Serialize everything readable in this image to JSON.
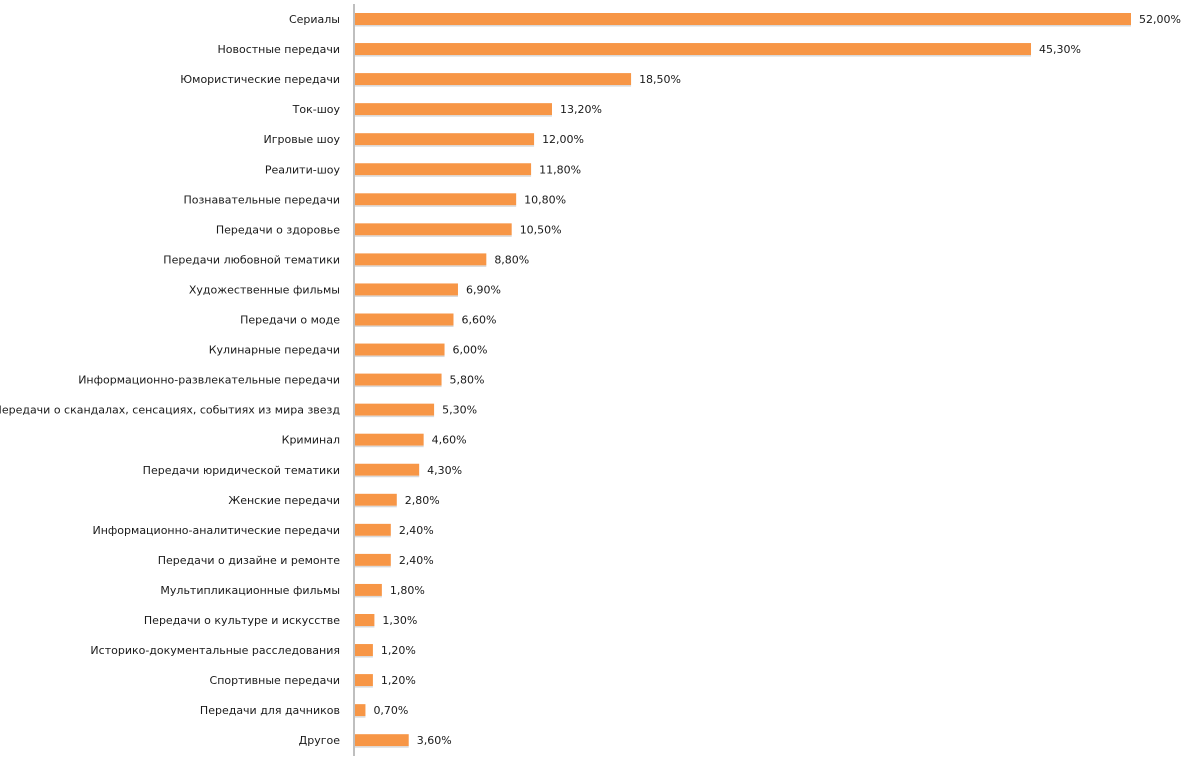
{
  "chart_data": {
    "type": "bar",
    "orientation": "horizontal",
    "title": "",
    "xlabel": "",
    "ylabel": "",
    "grid": false,
    "legend": "none",
    "xlim": [
      0,
      52
    ],
    "bar_color": "#F79646",
    "axis_color": "#7f7f7f",
    "categories": [
      "Сериалы",
      "Новостные передачи",
      "Юмористические передачи",
      "Ток-шоу",
      "Игровые шоу",
      "Реалити-шоу",
      "Познавательные передачи",
      "Передачи о здоровье",
      "Передачи любовной тематики",
      "Художественные фильмы",
      "Передачи о моде",
      "Кулинарные передачи",
      "Информационно-развлекательные передачи",
      "Передачи о скандалах, сенсациях, событиях из мира звезд",
      "Криминал",
      "Передачи юридической тематики",
      "Женские передачи",
      "Информационно-аналитические  передачи",
      "Передачи о дизайне  и ремонте",
      "Мультипликационные  фильмы",
      "Передачи о культуре и искусстве",
      "Историко-документальные  расследования",
      "Спортивные передачи",
      "Передачи для дачников",
      "Другое"
    ],
    "values": [
      52.0,
      45.3,
      18.5,
      13.2,
      12.0,
      11.8,
      10.8,
      10.5,
      8.8,
      6.9,
      6.6,
      6.0,
      5.8,
      5.3,
      4.6,
      4.3,
      2.8,
      2.4,
      2.4,
      1.8,
      1.3,
      1.2,
      1.2,
      0.7,
      3.6
    ],
    "value_labels": [
      "52,00%",
      "45,30%",
      "18,50%",
      "13,20%",
      "12,00%",
      "11,80%",
      "10,80%",
      "10,50%",
      "8,80%",
      "6,90%",
      "6,60%",
      "6,00%",
      "5,80%",
      "5,30%",
      "4,60%",
      "4,30%",
      "2,80%",
      "2,40%",
      "2,40%",
      "1,80%",
      "1,30%",
      "1,20%",
      "1,20%",
      "0,70%",
      "3,60%"
    ]
  }
}
